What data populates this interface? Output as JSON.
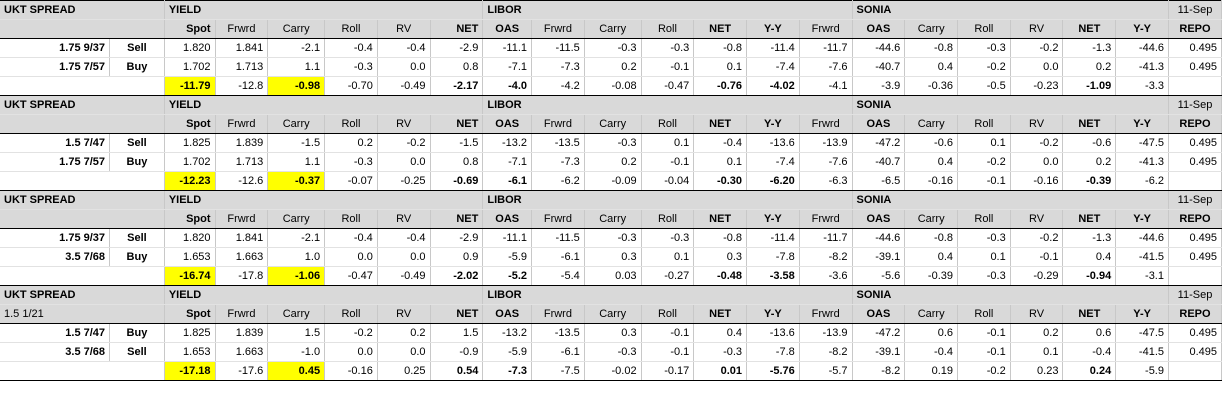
{
  "blocks": [
    {
      "title": "UKT SPREAD",
      "subtitle": "",
      "headers": {
        "yield": "YIELD",
        "libor": "LIBOR",
        "sonia": "SONIA",
        "date": "11-Sep",
        "yield_cols": [
          "Spot",
          "Frwrd",
          "Carry",
          "Roll",
          "RV",
          "NET"
        ],
        "libor_cols": [
          "OAS",
          "Frwrd",
          "Carry",
          "Roll",
          "NET",
          "Y-Y",
          "Frwrd"
        ],
        "sonia_cols": [
          "OAS",
          "Carry",
          "Roll",
          "RV",
          "NET",
          "Y-Y"
        ],
        "repo": "REPO"
      },
      "rows": [
        {
          "bond": "1.75  9/37",
          "side": "Sell",
          "yield": [
            "1.820",
            "1.841",
            "-2.1",
            "-0.4",
            "-0.4",
            "-2.9"
          ],
          "libor": [
            "-11.1",
            "-11.5",
            "-0.3",
            "-0.3",
            "-0.8",
            "-11.4",
            "-11.7"
          ],
          "sonia": [
            "-44.6",
            "-0.8",
            "-0.3",
            "-0.2",
            "-1.3",
            "-44.6"
          ],
          "repo": "0.495"
        },
        {
          "bond": "1.75  7/57",
          "side": "Buy",
          "yield": [
            "1.702",
            "1.713",
            "1.1",
            "-0.3",
            "0.0",
            "0.8"
          ],
          "libor": [
            "-7.1",
            "-7.3",
            "0.2",
            "-0.1",
            "0.1",
            "-7.4",
            "-7.6"
          ],
          "sonia": [
            "-40.7",
            "0.4",
            "-0.2",
            "0.0",
            "0.2",
            "-41.3"
          ],
          "repo": "0.495"
        }
      ],
      "summary": {
        "yield": [
          "-11.79",
          "-12.8",
          "-0.98",
          "-0.70",
          "-0.49",
          "-2.17"
        ],
        "libor": [
          "-4.0",
          "-4.2",
          "-0.08",
          "-0.47",
          "-0.76",
          "-4.02",
          "-4.1"
        ],
        "sonia": [
          "-3.9",
          "-0.36",
          "-0.5",
          "-0.23",
          "-1.09",
          "-3.3"
        ],
        "repo": ""
      }
    },
    {
      "title": "UKT SPREAD",
      "subtitle": "",
      "headers": {
        "yield": "YIELD",
        "libor": "LIBOR",
        "sonia": "SONIA",
        "date": "11-Sep",
        "yield_cols": [
          "Spot",
          "Frwrd",
          "Carry",
          "Roll",
          "RV",
          "NET"
        ],
        "libor_cols": [
          "OAS",
          "Frwrd",
          "Carry",
          "Roll",
          "NET",
          "Y-Y",
          "Frwrd"
        ],
        "sonia_cols": [
          "OAS",
          "Carry",
          "Roll",
          "RV",
          "NET",
          "Y-Y"
        ],
        "repo": "REPO"
      },
      "rows": [
        {
          "bond": "1.5  7/47",
          "side": "Sell",
          "yield": [
            "1.825",
            "1.839",
            "-1.5",
            "0.2",
            "-0.2",
            "-1.5"
          ],
          "libor": [
            "-13.2",
            "-13.5",
            "-0.3",
            "0.1",
            "-0.4",
            "-13.6",
            "-13.9"
          ],
          "sonia": [
            "-47.2",
            "-0.6",
            "0.1",
            "-0.2",
            "-0.6",
            "-47.5"
          ],
          "repo": "0.495"
        },
        {
          "bond": "1.75  7/57",
          "side": "Buy",
          "yield": [
            "1.702",
            "1.713",
            "1.1",
            "-0.3",
            "0.0",
            "0.8"
          ],
          "libor": [
            "-7.1",
            "-7.3",
            "0.2",
            "-0.1",
            "0.1",
            "-7.4",
            "-7.6"
          ],
          "sonia": [
            "-40.7",
            "0.4",
            "-0.2",
            "0.0",
            "0.2",
            "-41.3"
          ],
          "repo": "0.495"
        }
      ],
      "summary": {
        "yield": [
          "-12.23",
          "-12.6",
          "-0.37",
          "-0.07",
          "-0.25",
          "-0.69"
        ],
        "libor": [
          "-6.1",
          "-6.2",
          "-0.09",
          "-0.04",
          "-0.30",
          "-6.20",
          "-6.3"
        ],
        "sonia": [
          "-6.5",
          "-0.16",
          "-0.1",
          "-0.16",
          "-0.39",
          "-6.2"
        ],
        "repo": ""
      }
    },
    {
      "title": "UKT SPREAD",
      "subtitle": "",
      "headers": {
        "yield": "YIELD",
        "libor": "LIBOR",
        "sonia": "SONIA",
        "date": "11-Sep",
        "yield_cols": [
          "Spot",
          "Frwrd",
          "Carry",
          "Roll",
          "RV",
          "NET"
        ],
        "libor_cols": [
          "OAS",
          "Frwrd",
          "Carry",
          "Roll",
          "NET",
          "Y-Y",
          "Frwrd"
        ],
        "sonia_cols": [
          "OAS",
          "Carry",
          "Roll",
          "RV",
          "NET",
          "Y-Y"
        ],
        "repo": "REPO"
      },
      "rows": [
        {
          "bond": "1.75  9/37",
          "side": "Sell",
          "yield": [
            "1.820",
            "1.841",
            "-2.1",
            "-0.4",
            "-0.4",
            "-2.9"
          ],
          "libor": [
            "-11.1",
            "-11.5",
            "-0.3",
            "-0.3",
            "-0.8",
            "-11.4",
            "-11.7"
          ],
          "sonia": [
            "-44.6",
            "-0.8",
            "-0.3",
            "-0.2",
            "-1.3",
            "-44.6"
          ],
          "repo": "0.495"
        },
        {
          "bond": "3.5  7/68",
          "side": "Buy",
          "yield": [
            "1.653",
            "1.663",
            "1.0",
            "0.0",
            "0.0",
            "0.9"
          ],
          "libor": [
            "-5.9",
            "-6.1",
            "0.3",
            "0.1",
            "0.3",
            "-7.8",
            "-8.2"
          ],
          "sonia": [
            "-39.1",
            "0.4",
            "0.1",
            "-0.1",
            "0.4",
            "-41.5"
          ],
          "repo": "0.495"
        }
      ],
      "summary": {
        "yield": [
          "-16.74",
          "-17.8",
          "-1.06",
          "-0.47",
          "-0.49",
          "-2.02"
        ],
        "libor": [
          "-5.2",
          "-5.4",
          "0.03",
          "-0.27",
          "-0.48",
          "-3.58",
          "-3.6"
        ],
        "sonia": [
          "-5.6",
          "-0.39",
          "-0.3",
          "-0.29",
          "-0.94",
          "-3.1"
        ],
        "repo": ""
      }
    },
    {
      "title": "UKT SPREAD",
      "subtitle": "1.5  1/21",
      "headers": {
        "yield": "YIELD",
        "libor": "LIBOR",
        "sonia": "SONIA",
        "date": "11-Sep",
        "yield_cols": [
          "Spot",
          "Frwrd",
          "Carry",
          "Roll",
          "RV",
          "NET"
        ],
        "libor_cols": [
          "OAS",
          "Frwrd",
          "Carry",
          "Roll",
          "NET",
          "Y-Y",
          "Frwrd"
        ],
        "sonia_cols": [
          "OAS",
          "Carry",
          "Roll",
          "RV",
          "NET",
          "Y-Y"
        ],
        "repo": "REPO"
      },
      "rows": [
        {
          "bond": "1.5  7/47",
          "side": "Buy",
          "yield": [
            "1.825",
            "1.839",
            "1.5",
            "-0.2",
            "0.2",
            "1.5"
          ],
          "libor": [
            "-13.2",
            "-13.5",
            "0.3",
            "-0.1",
            "0.4",
            "-13.6",
            "-13.9"
          ],
          "sonia": [
            "-47.2",
            "0.6",
            "-0.1",
            "0.2",
            "0.6",
            "-47.5"
          ],
          "repo": "0.495"
        },
        {
          "bond": "3.5  7/68",
          "side": "Sell",
          "yield": [
            "1.653",
            "1.663",
            "-1.0",
            "0.0",
            "0.0",
            "-0.9"
          ],
          "libor": [
            "-5.9",
            "-6.1",
            "-0.3",
            "-0.1",
            "-0.3",
            "-7.8",
            "-8.2"
          ],
          "sonia": [
            "-39.1",
            "-0.4",
            "-0.1",
            "0.1",
            "-0.4",
            "-41.5"
          ],
          "repo": "0.495"
        }
      ],
      "summary": {
        "yield": [
          "-17.18",
          "-17.6",
          "0.45",
          "-0.16",
          "0.25",
          "0.54"
        ],
        "libor": [
          "-7.3",
          "-7.5",
          "-0.02",
          "-0.17",
          "0.01",
          "-5.76",
          "-5.7"
        ],
        "sonia": [
          "-8.2",
          "0.19",
          "-0.2",
          "0.23",
          "0.24",
          "-5.9"
        ],
        "repo": ""
      }
    }
  ],
  "colors": {
    "header_bg": "#d9d9d9",
    "highlight": "#ffff00",
    "grid": "#c8c8c8",
    "border": "#000000"
  }
}
